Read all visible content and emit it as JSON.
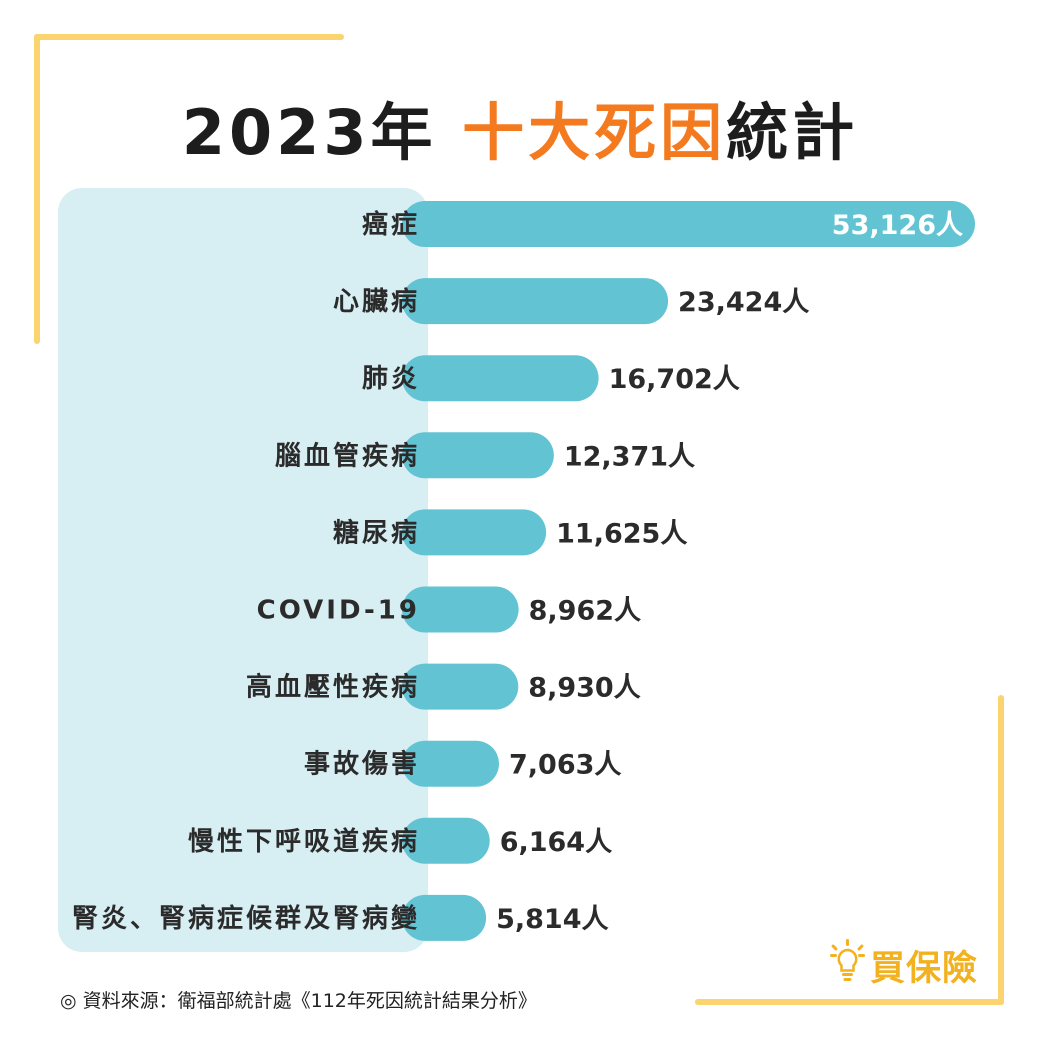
{
  "header": {
    "title_prefix": "2023年",
    "title_highlight": "十大死因",
    "title_suffix": "統計"
  },
  "source": "◎ 資料來源：衛福部統計處《112年死因統計結果分析》",
  "logo": {
    "text": "買保險",
    "icon": "lightbulb-icon"
  },
  "colors": {
    "bar": "#62c3d3",
    "label_panel": "#d7eef3",
    "title_highlight": "#f47a1f",
    "frame": "#fbd36f",
    "logo": "#f2b11f"
  },
  "chart_data": {
    "type": "bar",
    "orientation": "horizontal",
    "categories": [
      "癌症",
      "心臟病",
      "肺炎",
      "腦血管疾病",
      "糖尿病",
      "COVID-19",
      "高血壓性疾病",
      "事故傷害",
      "慢性下呼吸道疾病",
      "腎炎、腎病症候群及腎病變"
    ],
    "values": [
      53126,
      23424,
      16702,
      12371,
      11625,
      8962,
      8930,
      7063,
      6164,
      5814
    ],
    "value_labels": [
      "53,126人",
      "23,424人",
      "16,702人",
      "12,371人",
      "11,625人",
      "8,962人",
      "8,930人",
      "7,063人",
      "6,164人",
      "5,814人"
    ],
    "unit": "人",
    "title": "2023年 十大死因統計",
    "xlabel": "",
    "ylabel": "",
    "grid": false,
    "legend": "none"
  }
}
